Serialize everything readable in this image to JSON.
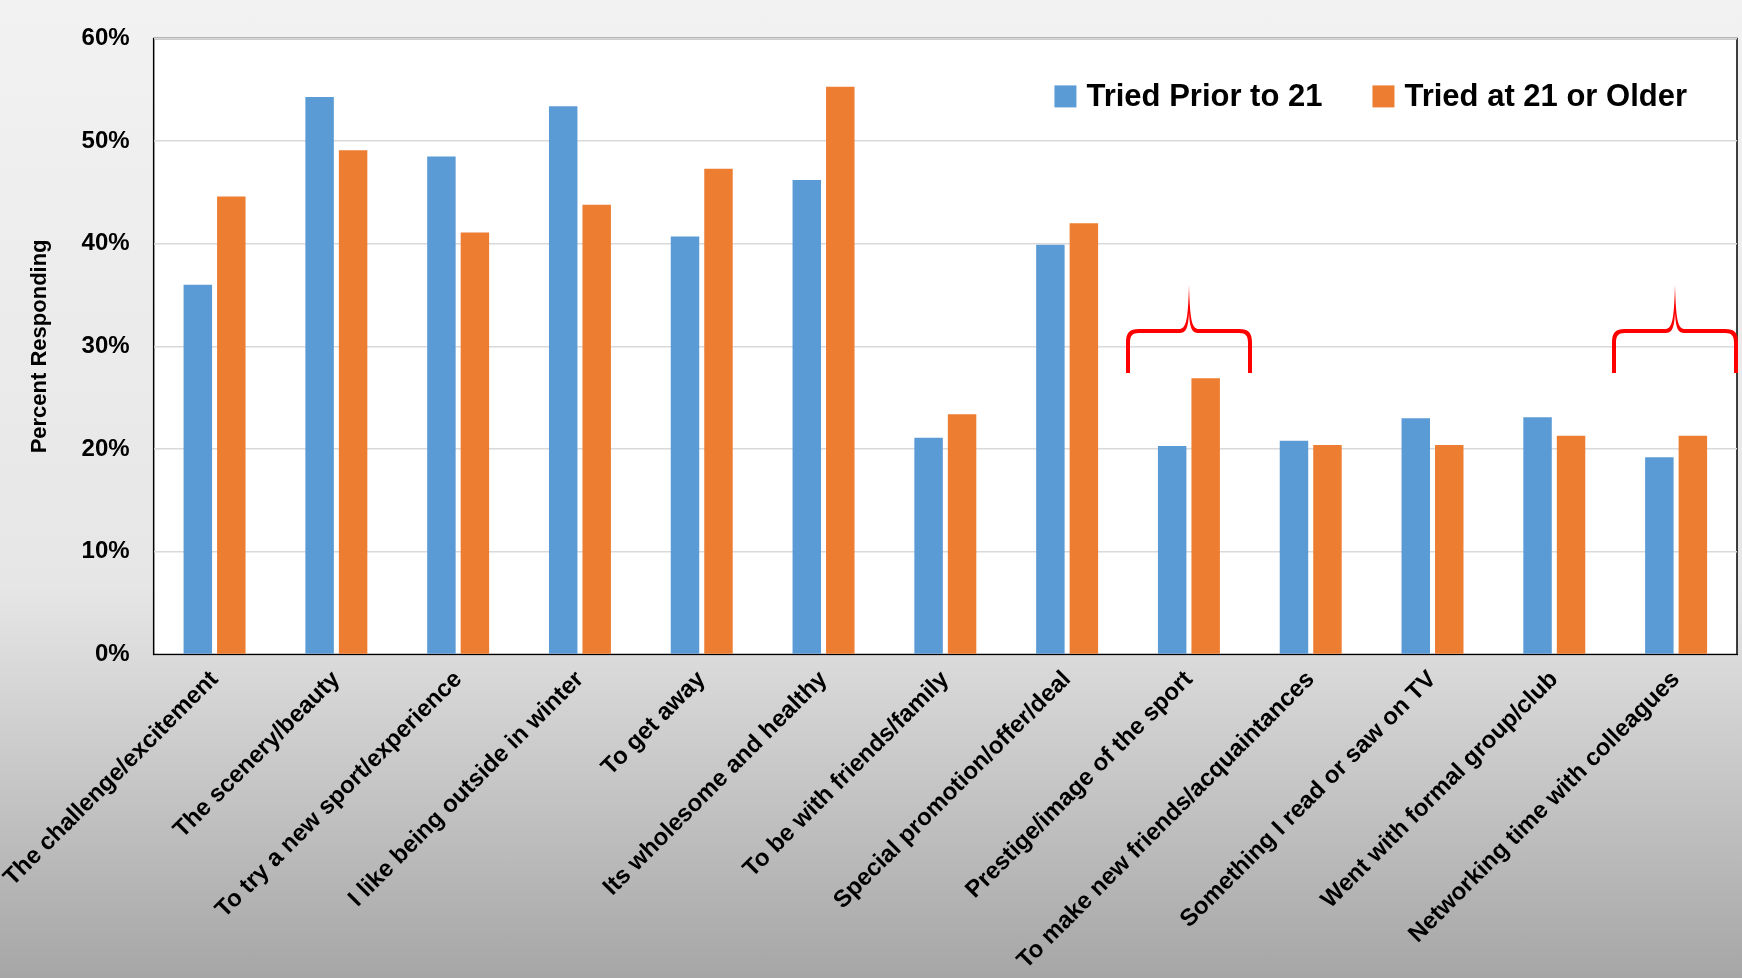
{
  "chart_data": {
    "type": "bar",
    "ylabel": "Percent Responding",
    "categories": [
      "The challenge/excitement",
      "The scenery/beauty",
      "To try a new sport/experience",
      "I like being outside in winter",
      "To get away",
      "Its wholesome and healthy",
      "To be with friends/family",
      "Special promotion/offer/deal",
      "Prestige/image of the sport",
      "To make new friends/acquaintances",
      "Something I read or saw on TV",
      "Went with formal group/club",
      "Networking time with colleagues"
    ],
    "series": [
      {
        "name": "Tried Prior to 21",
        "color": "#5b9bd5",
        "values": [
          36,
          54.3,
          48.5,
          53.4,
          40.7,
          46.2,
          21.1,
          39.9,
          20.3,
          20.8,
          23.0,
          23.1,
          19.2
        ]
      },
      {
        "name": "Tried at 21 or Older",
        "color": "#ed7d31",
        "values": [
          44.6,
          49.1,
          41.1,
          43.8,
          47.3,
          55.3,
          23.4,
          42.0,
          26.9,
          20.4,
          20.4,
          21.3,
          21.3
        ]
      }
    ],
    "ylim": [
      0,
      60
    ],
    "yticks": [
      {
        "value": 0,
        "label": "0%"
      },
      {
        "value": 10,
        "label": "10%"
      },
      {
        "value": 20,
        "label": "20%"
      },
      {
        "value": 30,
        "label": "30%"
      },
      {
        "value": 40,
        "label": "40%"
      },
      {
        "value": 50,
        "label": "50%"
      },
      {
        "value": 60,
        "label": "60%"
      }
    ],
    "grid": "y",
    "legend": "top right"
  }
}
